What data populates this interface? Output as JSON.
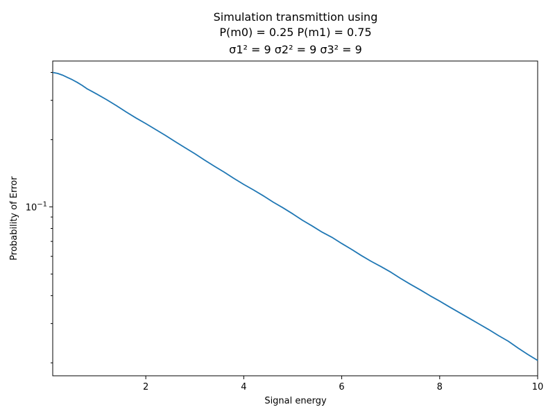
{
  "chart_data": {
    "type": "line",
    "title_lines": [
      "Simulation transmittion using",
      "P(m0) = 0.25 P(m1) = 0.75",
      "σ1² = 9 σ2² = 9 σ3² = 9"
    ],
    "xlabel": "Signal energy",
    "ylabel": "Probability of Error",
    "xlim": [
      0.1,
      10
    ],
    "ylim": [
      0.0175,
      0.45
    ],
    "yscale": "log",
    "x_ticks": [
      2,
      4,
      6,
      8,
      10
    ],
    "x_tick_labels": [
      "2",
      "4",
      "6",
      "8",
      "10"
    ],
    "y_major_ticks": [
      0.1
    ],
    "y_major_tick_labels": [
      "10−1"
    ],
    "y_minor_ticks": [
      0.02,
      0.03,
      0.04,
      0.05,
      0.06,
      0.07,
      0.08,
      0.09,
      0.2,
      0.3,
      0.4
    ],
    "grid": false,
    "series": [
      {
        "color": "#1f77b4",
        "x": [
          0.1,
          0.2,
          0.3,
          0.4,
          0.5,
          0.6,
          0.7,
          0.8,
          0.9,
          1.0,
          1.2,
          1.4,
          1.6,
          1.8,
          2.0,
          2.2,
          2.4,
          2.6,
          2.8,
          3.0,
          3.2,
          3.4,
          3.6,
          3.8,
          4.0,
          4.2,
          4.4,
          4.6,
          4.8,
          5.0,
          5.2,
          5.4,
          5.6,
          5.8,
          6.0,
          6.2,
          6.4,
          6.6,
          6.8,
          7.0,
          7.2,
          7.4,
          7.6,
          7.8,
          8.0,
          8.2,
          8.4,
          8.6,
          8.8,
          9.0,
          9.2,
          9.4,
          9.6,
          9.8,
          10.0
        ],
        "y": [
          0.4,
          0.396,
          0.389,
          0.38,
          0.371,
          0.361,
          0.35,
          0.338,
          0.329,
          0.32,
          0.302,
          0.284,
          0.266,
          0.25,
          0.236,
          0.222,
          0.209,
          0.196,
          0.184,
          0.173,
          0.162,
          0.152,
          0.143,
          0.134,
          0.126,
          0.119,
          0.112,
          0.105,
          0.099,
          0.093,
          0.087,
          0.082,
          0.077,
          0.073,
          0.0685,
          0.0645,
          0.0605,
          0.057,
          0.054,
          0.051,
          0.0478,
          0.045,
          0.0425,
          0.04,
          0.0378,
          0.0356,
          0.0336,
          0.0317,
          0.0299,
          0.0282,
          0.0265,
          0.025,
          0.0233,
          0.0218,
          0.0205
        ]
      }
    ]
  }
}
